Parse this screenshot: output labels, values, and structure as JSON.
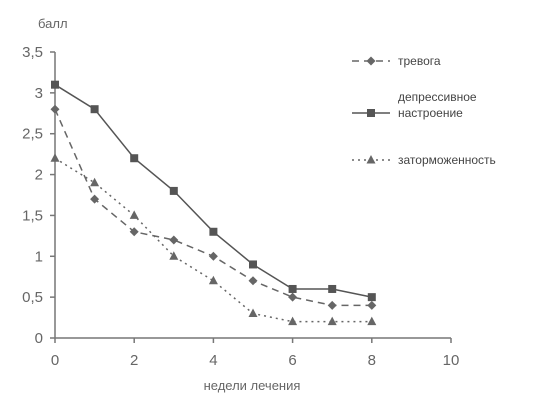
{
  "chart_data": {
    "type": "line",
    "ylabel": "балл",
    "xlabel": "недели лечения",
    "xlim": [
      0,
      10
    ],
    "ylim": [
      0,
      3.5
    ],
    "xticks": [
      "0",
      "2",
      "4",
      "6",
      "8",
      "10"
    ],
    "yticks": [
      "0",
      "0,5",
      "1",
      "1,5",
      "2",
      "2,5",
      "3",
      "3,5"
    ],
    "legend_position": "right",
    "grid": false,
    "x": [
      0,
      1,
      2,
      3,
      4,
      5,
      6,
      7,
      8
    ],
    "series": [
      {
        "name": "тревога",
        "values": [
          2.8,
          1.7,
          1.3,
          1.2,
          1.0,
          0.7,
          0.5,
          0.4,
          0.4
        ],
        "style": "dashed",
        "marker": "diamond",
        "color": "#666666"
      },
      {
        "name": "депрессивное настроение",
        "values": [
          3.1,
          2.8,
          2.2,
          1.8,
          1.3,
          0.9,
          0.6,
          0.6,
          0.5
        ],
        "style": "solid",
        "marker": "square",
        "color": "#555555"
      },
      {
        "name": "заторможенность",
        "values": [
          2.2,
          1.9,
          1.5,
          1.0,
          0.7,
          0.3,
          0.2,
          0.2,
          0.2
        ],
        "style": "dotted",
        "marker": "triangle",
        "color": "#666666"
      }
    ]
  }
}
